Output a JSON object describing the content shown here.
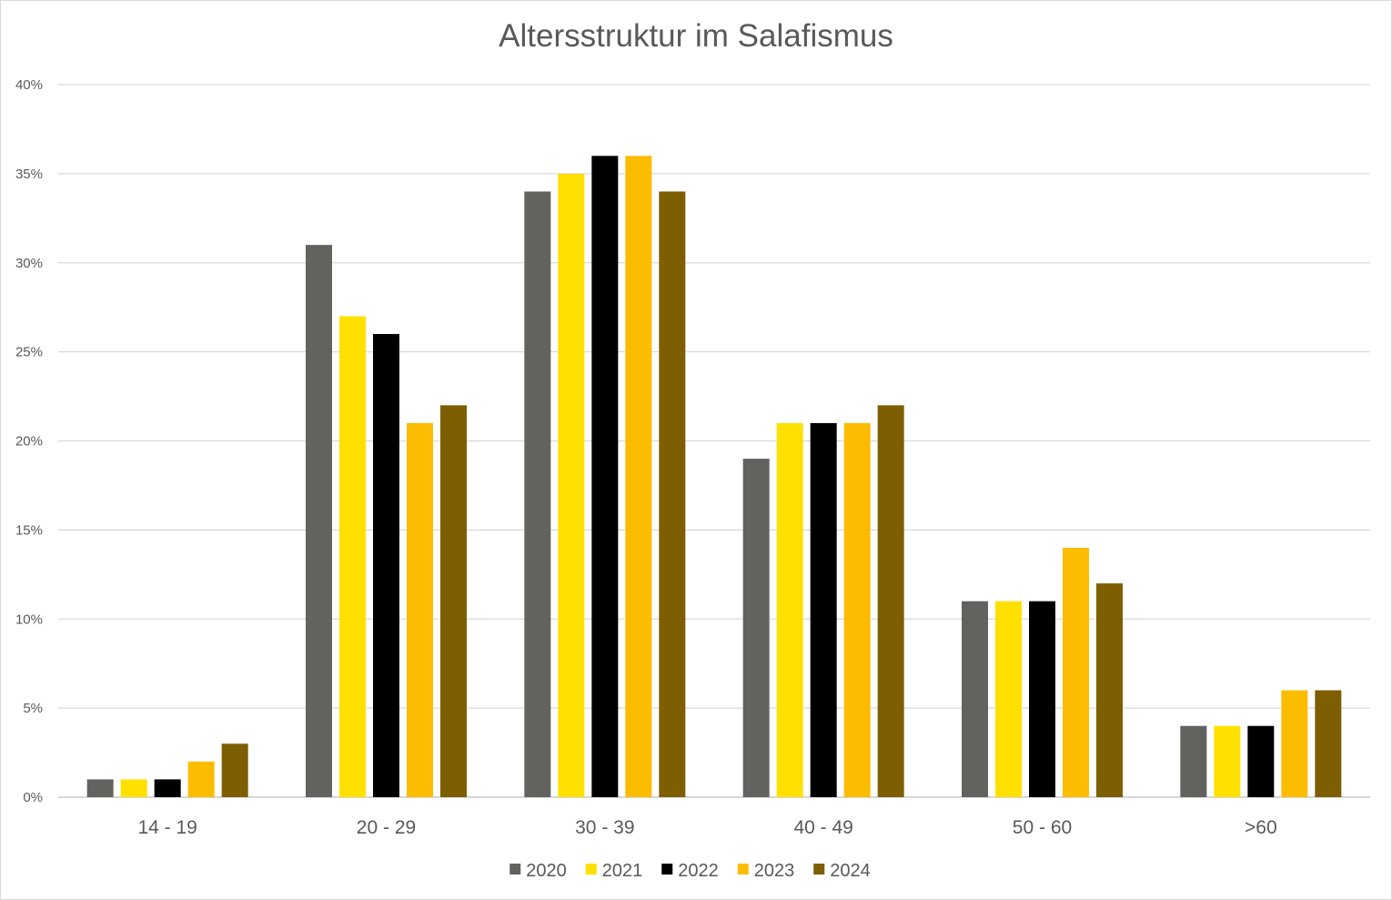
{
  "chart_data": {
    "type": "bar",
    "title": "Altersstruktur im Salafismus",
    "xlabel": "",
    "ylabel": "",
    "ylim": [
      0,
      40
    ],
    "y_ticks": [
      "0%",
      "5%",
      "10%",
      "15%",
      "20%",
      "25%",
      "30%",
      "35%",
      "40%"
    ],
    "y_tick_values": [
      0,
      5,
      10,
      15,
      20,
      25,
      30,
      35,
      40
    ],
    "grid": true,
    "legend_position": "bottom",
    "categories": [
      "14 - 19",
      "20 - 29",
      "30 - 39",
      "40 - 49",
      "50 - 60",
      ">60"
    ],
    "series": [
      {
        "name": "2020",
        "color": "#62635e",
        "values": [
          1,
          31,
          34,
          19,
          11,
          4
        ]
      },
      {
        "name": "2021",
        "color": "#ffe000",
        "values": [
          1,
          27,
          35,
          21,
          11,
          4
        ]
      },
      {
        "name": "2022",
        "color": "#000000",
        "values": [
          1,
          26,
          36,
          21,
          11,
          4
        ]
      },
      {
        "name": "2023",
        "color": "#fcbc00",
        "values": [
          2,
          21,
          36,
          21,
          14,
          6
        ]
      },
      {
        "name": "2024",
        "color": "#7d5e00",
        "values": [
          3,
          22,
          34,
          22,
          12,
          6
        ]
      }
    ]
  }
}
